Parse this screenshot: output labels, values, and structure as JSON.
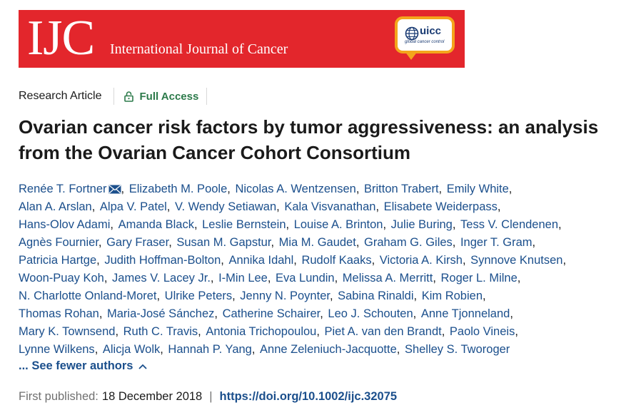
{
  "journal": {
    "logo_abbrev": "IJC",
    "name": "International Journal of Cancer",
    "partner_logo": "uicc",
    "partner_tagline": "global cancer control",
    "brand_color": "#e3262c",
    "partner_color": "#f4a51c"
  },
  "article_meta": {
    "type": "Research Article",
    "access_icon": "open-lock-icon",
    "access_label": "Full Access"
  },
  "title": "Ovarian cancer risk factors by tumor aggressiveness: an analysis from the Ovarian Cancer Cohort Consortium",
  "authors": [
    "Renée T. Fortner",
    "Elizabeth M. Poole",
    "Nicolas A. Wentzensen",
    "Britton Trabert",
    "Emily White",
    "Alan A. Arslan",
    "Alpa V. Patel",
    "V. Wendy Setiawan",
    "Kala Visvanathan",
    "Elisabete Weiderpass",
    "Hans‐Olov Adami",
    "Amanda Black",
    "Leslie Bernstein",
    "Louise A. Brinton",
    "Julie Buring",
    "Tess V. Clendenen",
    "Agnès Fournier",
    "Gary Fraser",
    "Susan M. Gapstur",
    "Mia M. Gaudet",
    "Graham G. Giles",
    "Inger T. Gram",
    "Patricia Hartge",
    "Judith Hoffman‐Bolton",
    "Annika Idahl",
    "Rudolf Kaaks",
    "Victoria A. Kirsh",
    "Synnove Knutsen",
    "Woon‐Puay Koh",
    "James V. Lacey Jr.",
    "I‐Min Lee",
    "Eva Lundin",
    "Melissa A. Merritt",
    "Roger L. Milne",
    "N. Charlotte Onland‐Moret",
    "Ulrike Peters",
    "Jenny N. Poynter",
    "Sabina Rinaldi",
    "Kim Robien",
    "Thomas Rohan",
    "Maria‐José Sánchez",
    "Catherine Schairer",
    "Leo J. Schouten",
    "Anne Tjonneland",
    "Mary K. Townsend",
    "Ruth C. Travis",
    "Antonia Trichopoulou",
    "Piet A. van den Brandt",
    "Paolo Vineis",
    "Lynne Wilkens",
    "Alicja Wolk",
    "Hannah P. Yang",
    "Anne Zeleniuch‐Jacquotte",
    "Shelley S. Tworoger"
  ],
  "author_line_breaks_after": [
    4,
    9,
    15,
    21,
    27,
    33,
    38,
    43,
    48
  ],
  "corresponding_icon": "envelope-icon",
  "see_fewer": {
    "label": "... See fewer authors",
    "icon": "chevron-up-icon"
  },
  "publication": {
    "label": "First published:",
    "date": "18 December 2018",
    "separator": "|",
    "doi": "https://doi.org/10.1002/ijc.32075"
  }
}
